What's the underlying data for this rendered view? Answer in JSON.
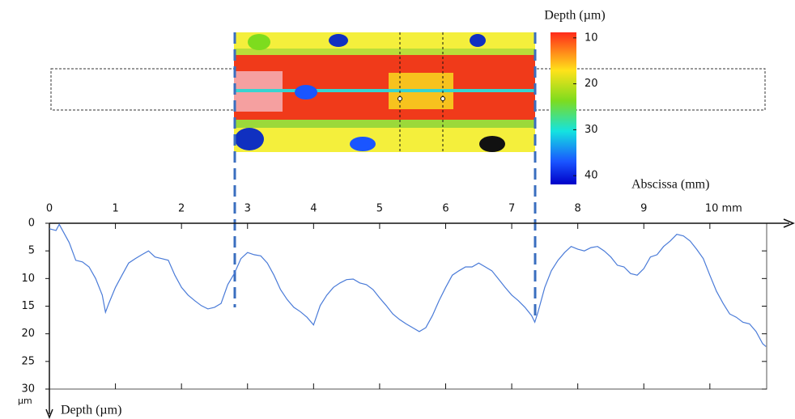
{
  "chart_data": {
    "type": "line",
    "x_label": "Abscissa (mm)",
    "y_label": "Depth (µm)",
    "y_unit": "µm",
    "colorbar_title": "Depth (µm)",
    "colorbar_lim": [
      8.8,
      41.9
    ],
    "colorbar_ticks": [
      10,
      20,
      30,
      40
    ],
    "xlim": [
      0,
      10.86
    ],
    "ylim": [
      0,
      30
    ],
    "y_inverted": true,
    "xticks": [
      0,
      1,
      2,
      3,
      4,
      5,
      6,
      7,
      8,
      9,
      {
        "value": 10,
        "label": "10 mm"
      }
    ],
    "yticks": [
      0,
      5,
      10,
      15,
      20,
      25,
      30
    ],
    "series": [
      {
        "color": "#4a7bd8",
        "x": [
          0,
          0.1,
          0.15,
          0.2,
          0.3,
          0.4,
          0.5,
          0.6,
          0.7,
          0.8,
          0.85,
          0.9,
          1.0,
          1.1,
          1.2,
          1.3,
          1.4,
          1.5,
          1.6,
          1.7,
          1.8,
          1.9,
          2.0,
          2.1,
          2.2,
          2.3,
          2.4,
          2.5,
          2.6,
          2.7,
          2.8,
          2.9,
          3.0,
          3.1,
          3.2,
          3.3,
          3.4,
          3.5,
          3.6,
          3.7,
          3.8,
          3.9,
          4.0,
          4.1,
          4.2,
          4.3,
          4.4,
          4.5,
          4.6,
          4.7,
          4.8,
          4.9,
          5.0,
          5.1,
          5.2,
          5.3,
          5.4,
          5.5,
          5.6,
          5.7,
          5.8,
          5.9,
          6.0,
          6.1,
          6.2,
          6.3,
          6.4,
          6.5,
          6.6,
          6.7,
          6.8,
          6.9,
          7.0,
          7.1,
          7.2,
          7.3,
          7.35,
          7.4,
          7.5,
          7.6,
          7.7,
          7.8,
          7.9,
          8.0,
          8.1,
          8.2,
          8.3,
          8.4,
          8.5,
          8.6,
          8.7,
          8.8,
          8.9,
          9.0,
          9.1,
          9.2,
          9.3,
          9.4,
          9.5,
          9.6,
          9.7,
          9.8,
          9.9,
          10.0,
          10.1,
          10.2,
          10.3,
          10.4,
          10.5,
          10.6,
          10.7,
          10.8,
          10.85
        ],
        "values": [
          1.0,
          1.3,
          0.2,
          1.3,
          3.5,
          6.7,
          7.0,
          7.9,
          10,
          13,
          16.1,
          14.5,
          11.6,
          9.4,
          7.2,
          6.4,
          5.7,
          5.0,
          6.1,
          6.4,
          6.7,
          9.4,
          11.6,
          13,
          14,
          14.9,
          15.5,
          15.2,
          14.5,
          11.1,
          9.1,
          6.4,
          5.3,
          5.7,
          5.9,
          7.2,
          9.4,
          12,
          13.8,
          15.2,
          16,
          17,
          18.4,
          14.9,
          13,
          11.6,
          10.8,
          10.2,
          10.1,
          10.8,
          11.1,
          12,
          13.5,
          14.9,
          16.4,
          17.4,
          18.2,
          18.9,
          19.6,
          18.9,
          16.7,
          14,
          11.6,
          9.4,
          8.6,
          7.9,
          7.9,
          7.2,
          7.9,
          8.6,
          10.1,
          11.6,
          13,
          14,
          15.2,
          16.7,
          17.9,
          16,
          11.6,
          8.6,
          6.7,
          5.3,
          4.2,
          4.7,
          5.0,
          4.4,
          4.2,
          5.0,
          6.1,
          7.6,
          7.9,
          9.1,
          9.4,
          8.2,
          6.1,
          5.7,
          4.2,
          3.2,
          2.0,
          2.3,
          3.2,
          4.7,
          6.4,
          9.4,
          12.3,
          14.5,
          16.4,
          17,
          17.9,
          18.2,
          19.6,
          21.8,
          22.3
        ]
      }
    ]
  }
}
